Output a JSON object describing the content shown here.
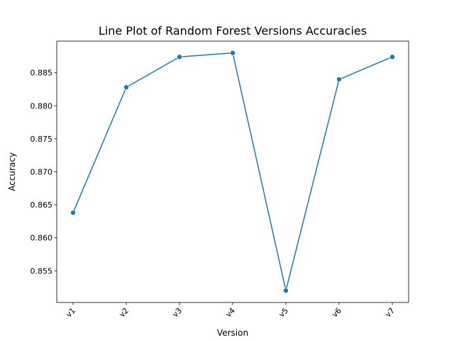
{
  "chart_data": {
    "type": "line",
    "title": "Line Plot of Random Forest Versions Accuracies",
    "xlabel": "Version",
    "ylabel": "Accuracy",
    "categories": [
      "v1",
      "v2",
      "v3",
      "v4",
      "v5",
      "v6",
      "v7"
    ],
    "series": [
      {
        "values": [
          0.8638,
          0.8828,
          0.8874,
          0.888,
          0.852,
          0.884,
          0.8874
        ],
        "color": "#1f77b4",
        "marker": "circle"
      }
    ],
    "ylim": [
      0.8502,
      0.8898
    ],
    "yticks": [
      0.855,
      0.86,
      0.865,
      0.87,
      0.875,
      0.88,
      0.885
    ],
    "ytick_labels": [
      "0.855",
      "0.860",
      "0.865",
      "0.870",
      "0.875",
      "0.880",
      "0.885"
    ],
    "xtick_rotation": 45,
    "grid": false,
    "legend": "none"
  }
}
